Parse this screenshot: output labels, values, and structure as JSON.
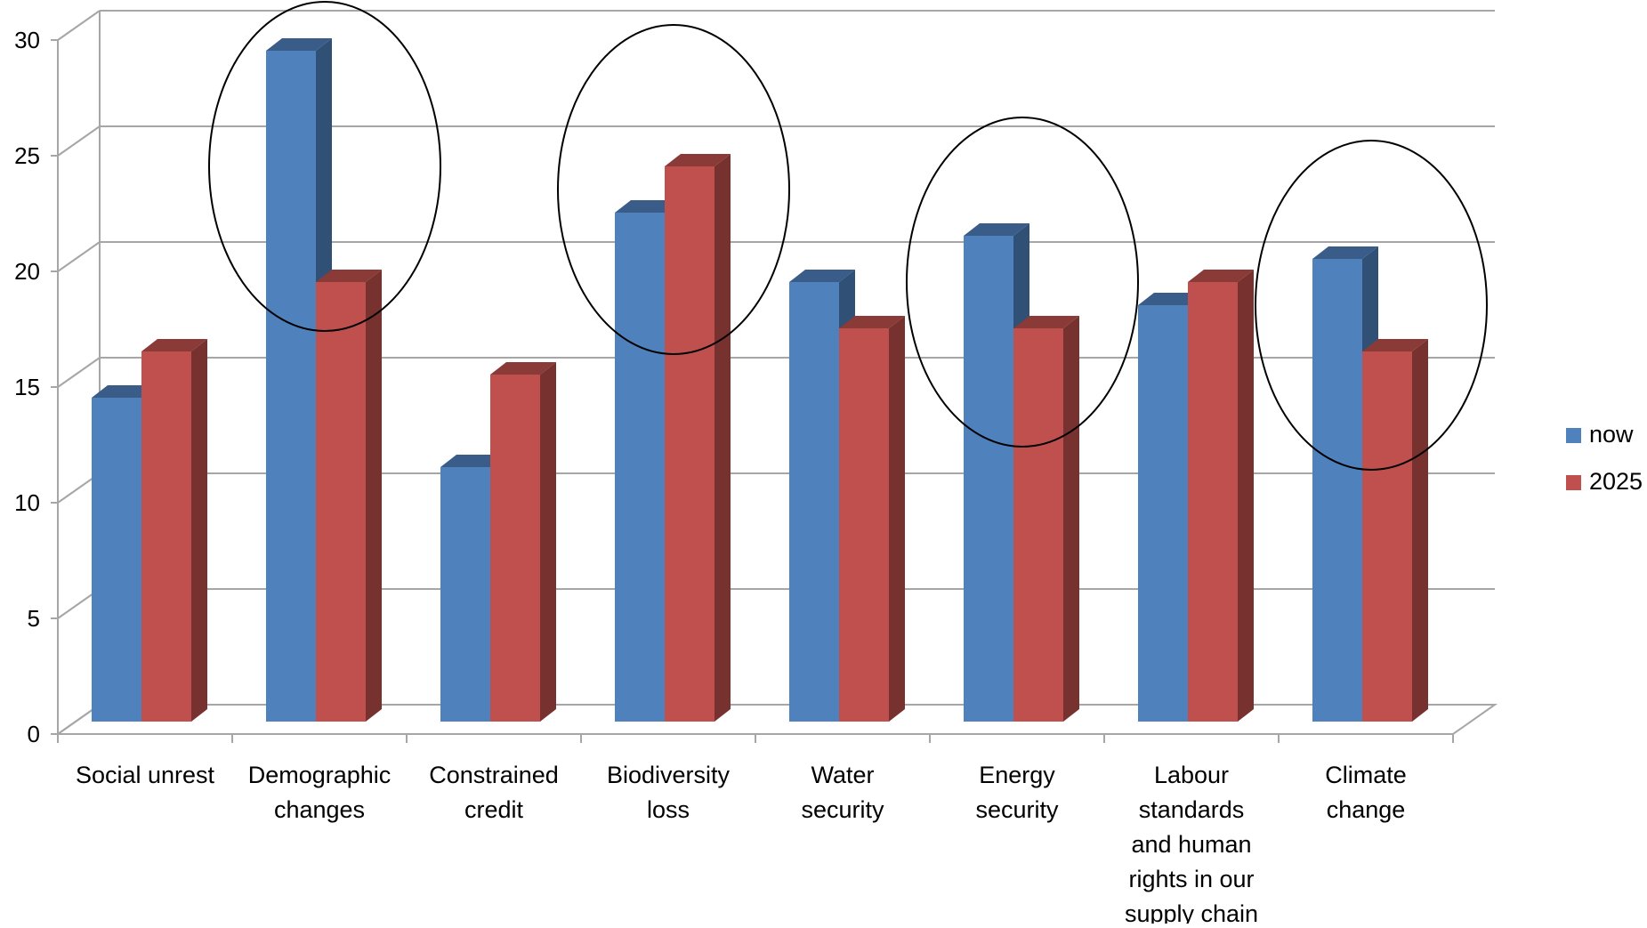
{
  "chart_data": {
    "type": "bar",
    "title": "",
    "xlabel": "",
    "ylabel": "",
    "ylim": [
      0,
      30
    ],
    "yticks": [
      0,
      5,
      10,
      15,
      20,
      25,
      30
    ],
    "grid": true,
    "three_d": true,
    "legend_position": "right",
    "categories": [
      "Social unrest",
      "Demographic changes",
      "Constrained credit",
      "Biodiversity loss",
      "Water security",
      "Energy security",
      "Labour standards and human rights in our supply chain",
      "Climate change"
    ],
    "category_label_lines": [
      [
        "Social unrest"
      ],
      [
        "Demographic",
        "changes"
      ],
      [
        "Constrained",
        "credit"
      ],
      [
        "Biodiversity",
        "loss"
      ],
      [
        "Water",
        "security"
      ],
      [
        "Energy",
        "security"
      ],
      [
        "Labour",
        "standards",
        "and human",
        "rights in our",
        "supply chain"
      ],
      [
        "Climate",
        "change"
      ]
    ],
    "series": [
      {
        "name": "now",
        "color": "#4F81BD",
        "values": [
          14,
          29,
          11,
          22,
          19,
          21,
          18,
          20
        ]
      },
      {
        "name": "2025",
        "color": "#C0504D",
        "values": [
          16,
          19,
          15,
          24,
          17,
          17,
          19,
          16
        ]
      }
    ],
    "annotations": {
      "circled_categories": [
        "Demographic changes",
        "Biodiversity loss",
        "Energy security",
        "Climate change"
      ]
    }
  }
}
